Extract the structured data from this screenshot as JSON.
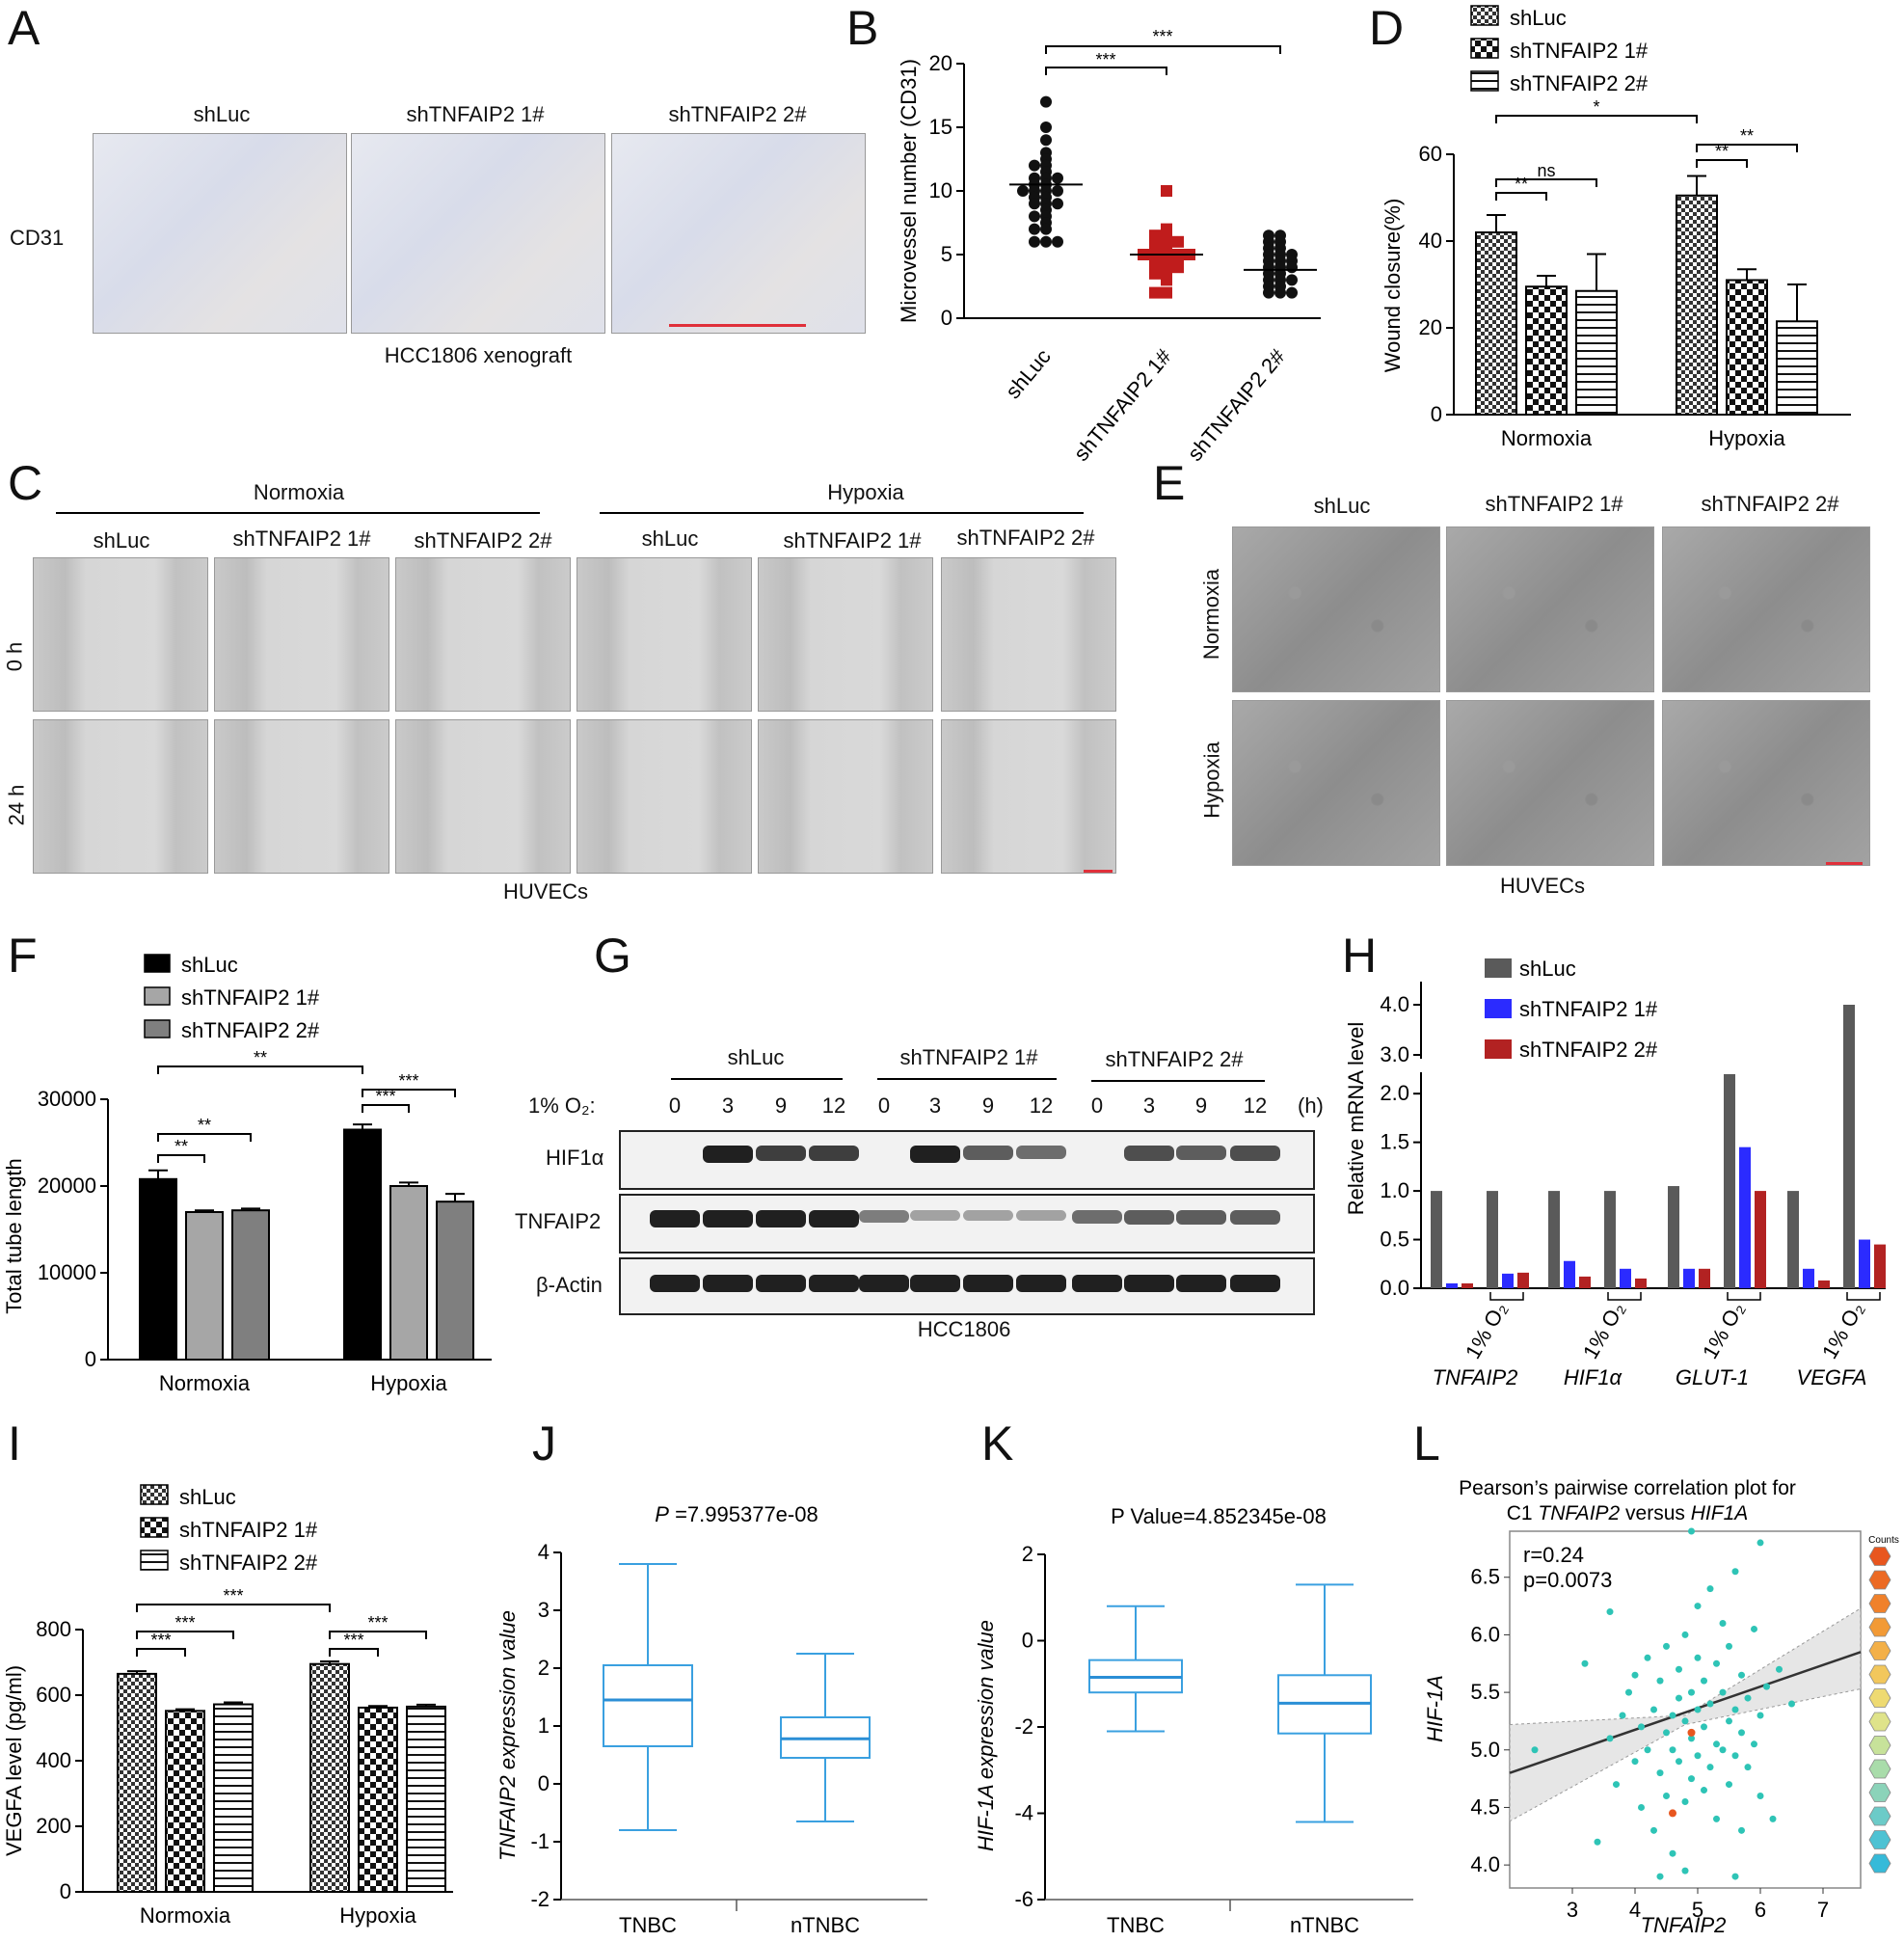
{
  "panels": [
    "A",
    "B",
    "C",
    "D",
    "E",
    "F",
    "G",
    "H",
    "I",
    "J",
    "K",
    "L"
  ],
  "panelA": {
    "columns": [
      "shLuc",
      "shTNFAIP2 1#",
      "shTNFAIP2 2#"
    ],
    "row_label": "CD31",
    "caption": "HCC1806 xenograft"
  },
  "panelC": {
    "groups": [
      "Normoxia",
      "Hypoxia"
    ],
    "columns": [
      "shLuc",
      "shTNFAIP2 1#",
      "shTNFAIP2 2#",
      "shLuc",
      "shTNFAIP2 1#",
      "shTNFAIP2 2#"
    ],
    "rows": [
      "0 h",
      "24 h"
    ],
    "caption": "HUVECs"
  },
  "panelE": {
    "columns": [
      "shLuc",
      "shTNFAIP2 1#",
      "shTNFAIP2 2#"
    ],
    "rows": [
      "Normoxia",
      "Hypoxia"
    ],
    "caption": "HUVECs"
  },
  "panelG": {
    "groups": [
      "shLuc",
      "shTNFAIP2 1#",
      "shTNFAIP2 2#"
    ],
    "o2_label": "1% O₂:",
    "timepoints": [
      "0",
      "3",
      "9",
      "12",
      "0",
      "3",
      "9",
      "12",
      "0",
      "3",
      "9",
      "12"
    ],
    "unit": "(h)",
    "rows": [
      "HIF1α",
      "TNFAIP2",
      "β-Actin"
    ],
    "caption": "HCC1806"
  },
  "chart_data": [
    {
      "panel": "B",
      "type": "scatter",
      "ylabel": "Microvessel number (CD31)",
      "categories": [
        "shLuc",
        "shTNFAIP2 1#",
        "shTNFAIP2 2#"
      ],
      "ylim": [
        0,
        20
      ],
      "yticks": [
        0,
        5,
        10,
        15,
        20
      ],
      "means": [
        10.5,
        5,
        3.8
      ],
      "points": [
        [
          17,
          15,
          14,
          13,
          12.5,
          12,
          12,
          11.5,
          11,
          11,
          11,
          10.5,
          10.5,
          10,
          10,
          10,
          10,
          9.5,
          9.5,
          9,
          9,
          9,
          8.5,
          8,
          8,
          7.5,
          7,
          7,
          6,
          6,
          6
        ],
        [
          10,
          7,
          6.5,
          6.5,
          6,
          6,
          6,
          5.5,
          5.5,
          5,
          5,
          5,
          5,
          5,
          4.5,
          4.5,
          4.5,
          4,
          4,
          4,
          3.5,
          3.5,
          3,
          2,
          2
        ],
        [
          6.5,
          6.5,
          6,
          6,
          5.5,
          5.5,
          5,
          5,
          5,
          4.5,
          4.5,
          4.5,
          4,
          4,
          4,
          3.5,
          3.5,
          3,
          3,
          3,
          2.5,
          2.5,
          2,
          2,
          2
        ]
      ],
      "significance": [
        {
          "from": 0,
          "to": 1,
          "label": "***"
        },
        {
          "from": 0,
          "to": 2,
          "label": "***"
        }
      ]
    },
    {
      "panel": "D",
      "type": "bar",
      "ylabel": "Wound closure(%)",
      "categories": [
        "Normoxia",
        "Hypoxia"
      ],
      "series": [
        {
          "name": "shLuc",
          "values": [
            42,
            50.5
          ],
          "errors": [
            4,
            4.5
          ],
          "pattern": "check"
        },
        {
          "name": "shTNFAIP2 1#",
          "values": [
            29.5,
            31
          ],
          "errors": [
            2.5,
            2.5
          ],
          "pattern": "checker"
        },
        {
          "name": "shTNFAIP2 2#",
          "values": [
            28.5,
            21.5
          ],
          "errors": [
            8.5,
            8.5
          ],
          "pattern": "hline"
        }
      ],
      "ylim": [
        0,
        60
      ],
      "yticks": [
        0,
        20,
        40,
        60
      ],
      "significance": [
        {
          "label": "**"
        },
        {
          "label": "ns"
        },
        {
          "label": "*"
        },
        {
          "label": "**"
        },
        {
          "label": "**"
        }
      ]
    },
    {
      "panel": "F",
      "type": "bar",
      "ylabel": "Total tube length",
      "categories": [
        "Normoxia",
        "Hypoxia"
      ],
      "series": [
        {
          "name": "shLuc",
          "values": [
            20800,
            26500
          ],
          "errors": [
            1000,
            600
          ],
          "color": "#000000"
        },
        {
          "name": "shTNFAIP2 1#",
          "values": [
            17000,
            20000
          ],
          "errors": [
            200,
            400
          ],
          "color": "#a6a6a6"
        },
        {
          "name": "shTNFAIP2 2#",
          "values": [
            17200,
            18200
          ],
          "errors": [
            200,
            900
          ],
          "color": "#7f7f7f"
        }
      ],
      "ylim": [
        0,
        30000
      ],
      "yticks": [
        0,
        10000,
        20000,
        30000
      ],
      "significance": [
        {
          "label": "**"
        },
        {
          "label": "**"
        },
        {
          "label": "**"
        },
        {
          "label": "***"
        },
        {
          "label": "***"
        }
      ]
    },
    {
      "panel": "H",
      "type": "bar",
      "ylabel": "Relative mRNA level",
      "genes": [
        "TNFAIP2",
        "HIF1α",
        "GLUT-1",
        "VEGFA"
      ],
      "condition_label": "1% O₂",
      "series": [
        {
          "name": "shLuc",
          "color": "#5a5a5a",
          "values": [
            1.0,
            0.05,
            1.0,
            0.14,
            1.0,
            0.35,
            1.0,
            0.2,
            1.05,
            0.2,
            2.2,
            1.45,
            1.0,
            0.2,
            4.0,
            0.5
          ]
        },
        {
          "name": "shTNFAIP2 1#",
          "color": "#2b2bff",
          "values": [
            0.05,
            0.15,
            0.28,
            0.2,
            0.2,
            1.45,
            0.2,
            0.5
          ]
        },
        {
          "name": "shTNFAIP2 2#",
          "color": "#b22222",
          "values": [
            0.05,
            0.16,
            0.12,
            0.1,
            0.2,
            1.0,
            0.08,
            0.45
          ]
        }
      ],
      "yticks": [
        "0.0",
        "0.5",
        "1.0",
        "1.5",
        "2.0",
        "3.0",
        "4.0"
      ]
    },
    {
      "panel": "I",
      "type": "bar",
      "ylabel": "VEGFA level (pg/ml)",
      "categories": [
        "Normoxia",
        "Hypoxia"
      ],
      "series": [
        {
          "name": "shLuc",
          "values": [
            665,
            695
          ],
          "errors": [
            8,
            8
          ],
          "pattern": "check"
        },
        {
          "name": "shTNFAIP2 1#",
          "values": [
            552,
            562
          ],
          "errors": [
            5,
            5
          ],
          "pattern": "checker"
        },
        {
          "name": "shTNFAIP2 2#",
          "values": [
            572,
            565
          ],
          "errors": [
            6,
            6
          ],
          "pattern": "hline"
        }
      ],
      "ylim": [
        0,
        800
      ],
      "yticks": [
        0,
        200,
        400,
        600,
        800
      ],
      "significance": [
        {
          "label": "***"
        },
        {
          "label": "***"
        },
        {
          "label": "***"
        },
        {
          "label": "***"
        },
        {
          "label": "***"
        }
      ]
    },
    {
      "panel": "J",
      "type": "box",
      "title_prefix": "P",
      "title": " =7.995377e-08",
      "ylabel": "TNFAIP2 expression value",
      "categories": [
        "TNBC",
        "nTNBC"
      ],
      "boxes": [
        {
          "min": -0.8,
          "q1": 0.65,
          "median": 1.45,
          "q3": 2.05,
          "max": 3.8
        },
        {
          "min": -0.65,
          "q1": 0.45,
          "median": 0.78,
          "q3": 1.15,
          "max": 2.25
        }
      ],
      "ylim": [
        -2,
        4
      ],
      "yticks": [
        -2,
        -1,
        0,
        1,
        2,
        3,
        4
      ]
    },
    {
      "panel": "K",
      "type": "box",
      "title": "P Value=4.852345e-08",
      "ylabel": "HIF-1A expression value",
      "categories": [
        "TNBC",
        "nTNBC"
      ],
      "boxes": [
        {
          "min": -2.1,
          "q1": -1.2,
          "median": -0.85,
          "q3": -0.45,
          "max": 0.8
        },
        {
          "min": -4.2,
          "q1": -2.15,
          "median": -1.45,
          "q3": -0.8,
          "max": 1.3
        }
      ],
      "ylim": [
        -6,
        2
      ],
      "yticks": [
        -6,
        -4,
        -2,
        0,
        2
      ]
    },
    {
      "panel": "L",
      "type": "scatter",
      "title_line1": "Pearson’s pairwise correlation plot for",
      "title_line2_pre": "C1 ",
      "title_line2_gene1": "TNFAIP2",
      "title_line2_mid": " versus ",
      "title_line2_gene2": "HIF1A",
      "stat_r": "r=0.24",
      "stat_p": "p=0.0073",
      "xlabel": "TNFAIP2",
      "ylabel": "HIF-1A",
      "legend_title": "Counts",
      "xlim": [
        2,
        7.6
      ],
      "ylim": [
        3.8,
        6.9
      ],
      "xticks": [
        3,
        4,
        5,
        6,
        7
      ],
      "yticks": [
        4.0,
        4.5,
        5.0,
        5.5,
        6.0,
        6.5
      ],
      "fit": {
        "x0": 2,
        "y0": 4.8,
        "x1": 7.6,
        "y1": 5.85
      },
      "point_color": "#2ec4b6",
      "points": [
        [
          2.4,
          5.0
        ],
        [
          3.2,
          5.75
        ],
        [
          3.4,
          4.2
        ],
        [
          3.6,
          5.1
        ],
        [
          3.7,
          4.7
        ],
        [
          3.8,
          5.3
        ],
        [
          3.9,
          5.5
        ],
        [
          4.0,
          4.9
        ],
        [
          4.0,
          5.65
        ],
        [
          4.1,
          5.2
        ],
        [
          4.1,
          4.5
        ],
        [
          4.2,
          5.0
        ],
        [
          4.2,
          5.8
        ],
        [
          4.3,
          5.35
        ],
        [
          4.3,
          4.3
        ],
        [
          4.4,
          5.6
        ],
        [
          4.4,
          4.8
        ],
        [
          4.5,
          5.15
        ],
        [
          4.5,
          5.9
        ],
        [
          4.5,
          4.6
        ],
        [
          4.6,
          5.3
        ],
        [
          4.6,
          5.0
        ],
        [
          4.6,
          4.1
        ],
        [
          4.7,
          5.45
        ],
        [
          4.7,
          5.7
        ],
        [
          4.7,
          4.9
        ],
        [
          4.8,
          5.25
        ],
        [
          4.8,
          6.0
        ],
        [
          4.8,
          4.55
        ],
        [
          4.9,
          5.1
        ],
        [
          4.9,
          5.5
        ],
        [
          4.9,
          4.75
        ],
        [
          5.0,
          5.35
        ],
        [
          5.0,
          5.8
        ],
        [
          5.0,
          4.95
        ],
        [
          5.0,
          6.25
        ],
        [
          5.1,
          5.2
        ],
        [
          5.1,
          4.65
        ],
        [
          5.1,
          5.6
        ],
        [
          5.2,
          5.4
        ],
        [
          5.2,
          4.85
        ],
        [
          5.2,
          6.4
        ],
        [
          5.3,
          5.05
        ],
        [
          5.3,
          5.75
        ],
        [
          5.3,
          4.4
        ],
        [
          5.4,
          5.5
        ],
        [
          5.4,
          5.0
        ],
        [
          5.4,
          6.1
        ],
        [
          5.5,
          5.25
        ],
        [
          5.5,
          4.7
        ],
        [
          5.5,
          5.9
        ],
        [
          5.6,
          5.35
        ],
        [
          5.6,
          4.95
        ],
        [
          5.6,
          6.55
        ],
        [
          5.7,
          5.15
        ],
        [
          5.7,
          5.65
        ],
        [
          5.8,
          4.85
        ],
        [
          5.8,
          5.45
        ],
        [
          5.9,
          5.05
        ],
        [
          5.9,
          6.05
        ],
        [
          6.0,
          5.3
        ],
        [
          6.0,
          4.6
        ],
        [
          6.1,
          5.55
        ],
        [
          6.2,
          4.4
        ],
        [
          6.3,
          5.7
        ],
        [
          6.5,
          5.4
        ],
        [
          4.4,
          3.9
        ],
        [
          4.8,
          3.95
        ],
        [
          5.7,
          4.3
        ],
        [
          3.6,
          6.2
        ],
        [
          6.0,
          6.8
        ],
        [
          4.9,
          6.9
        ],
        [
          5.6,
          3.9
        ]
      ],
      "highlight_points": [
        [
          4.9,
          5.15
        ],
        [
          4.6,
          4.45
        ]
      ],
      "colorscale": [
        "#e8561f",
        "#ec6a24",
        "#f0812b",
        "#f29a36",
        "#f3b048",
        "#f2c75c",
        "#eeda72",
        "#dfe38a",
        "#c7e29a",
        "#a9dcaa",
        "#8bd3b9",
        "#6ccbc8",
        "#4ec2d3",
        "#36bad9"
      ]
    }
  ]
}
